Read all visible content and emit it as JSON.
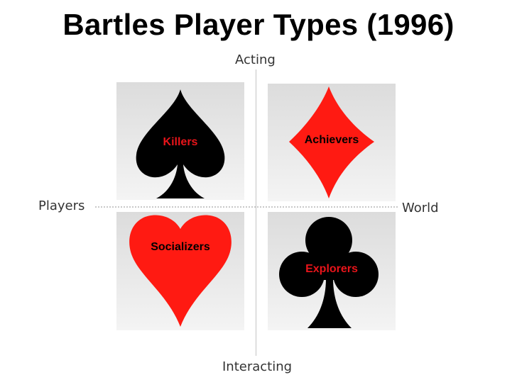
{
  "title": "Bartles Player Types (1996)",
  "axes": {
    "top": "Acting",
    "bottom": "Interacting",
    "left": "Players",
    "right": "World"
  },
  "quadrants": {
    "top_left": {
      "label": "Killers",
      "suit": "spade-icon",
      "suit_color": "#000000",
      "label_color": "#e8141a"
    },
    "top_right": {
      "label": "Achievers",
      "suit": "diamond-icon",
      "suit_color": "#ff1a12",
      "label_color": "#000000"
    },
    "bottom_left": {
      "label": "Socializers",
      "suit": "heart-icon",
      "suit_color": "#ff1a12",
      "label_color": "#000000"
    },
    "bottom_right": {
      "label": "Explorers",
      "suit": "club-icon",
      "suit_color": "#000000",
      "label_color": "#e8141a"
    }
  }
}
